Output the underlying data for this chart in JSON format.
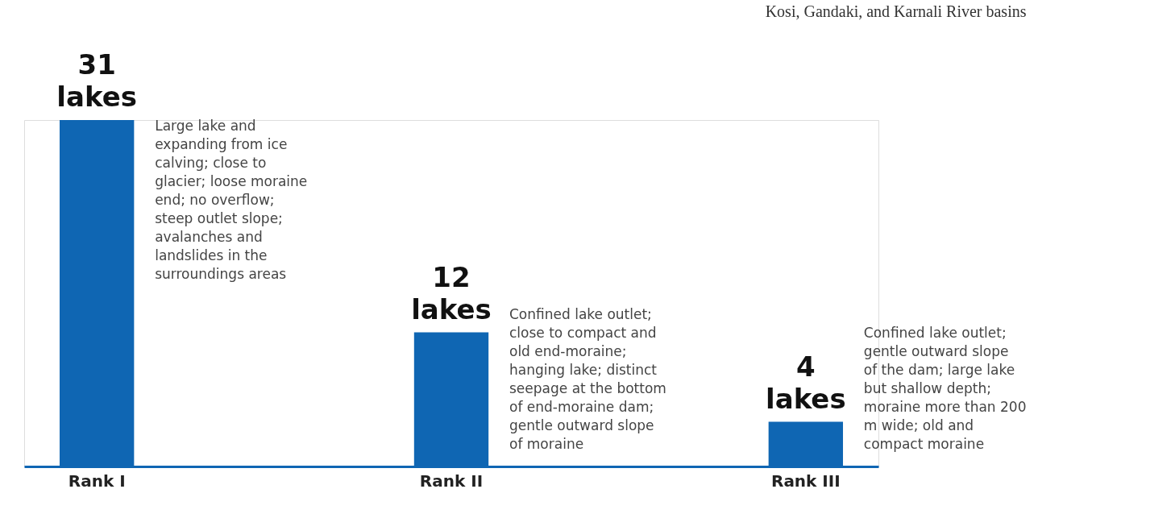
{
  "chart_data": {
    "type": "bar",
    "title": "Kosi, Gandaki, and Karnali River basins",
    "categories": [
      "Rank I",
      "Rank II",
      "Rank III"
    ],
    "values": [
      31,
      12,
      4
    ],
    "color": "#0f66b3",
    "value_labels": [
      "31 lakes",
      "12 lakes",
      "4 lakes"
    ],
    "annotations": [
      "Large lake and expanding from ice calving; close to glacier; loose moraine end; no overflow; steep outlet slope; avalanches and landslides in the surroundings areas",
      "Confined lake outlet; close to compact and old end-moraine; hanging lake; distinct seepage at the bottom of end-moraine dam; gentle outward slope of moraine",
      "Confined lake outlet; gentle outward slope of the dam; large lake but shallow depth; moraine more than 200 m wide; old and compact moraine"
    ],
    "grid": false
  }
}
